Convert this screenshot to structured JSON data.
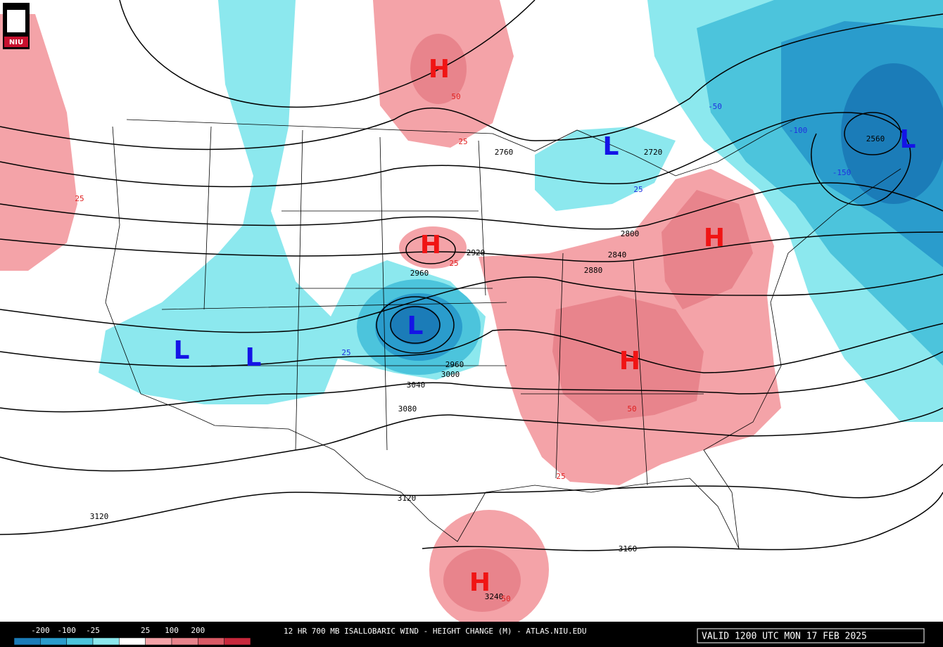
{
  "logo": "NIU",
  "pressure_centers": [
    "H",
    "H",
    "H",
    "H",
    "H",
    "L",
    "L",
    "L",
    "L",
    "L"
  ],
  "height_labels": [
    2760,
    2720,
    2800,
    2840,
    2880,
    2920,
    2960,
    3040,
    3080,
    3120,
    3120,
    3160,
    3240,
    2560,
    2960,
    3000
  ],
  "change_labels_positive": [
    25,
    50,
    25,
    25,
    25,
    50,
    50
  ],
  "change_labels_negative": [
    -50,
    -100,
    -150,
    25,
    25
  ],
  "legend": {
    "labels": [
      -200,
      -100,
      -25,
      25,
      100,
      200
    ],
    "colors": [
      "#1b7cb8",
      "#2a9ccc",
      "#4cc4dc",
      "#8ce8ee",
      "#ffffff",
      "#f4a3a8",
      "#e8848c",
      "#d95b66",
      "#c8283c"
    ]
  },
  "title": "12 HR 700 MB ISALLOBARIC WIND - HEIGHT CHANGE (M) - ATLAS.NIU.EDU",
  "valid_time": "VALID 1200 UTC MON 17 FEB 2025"
}
